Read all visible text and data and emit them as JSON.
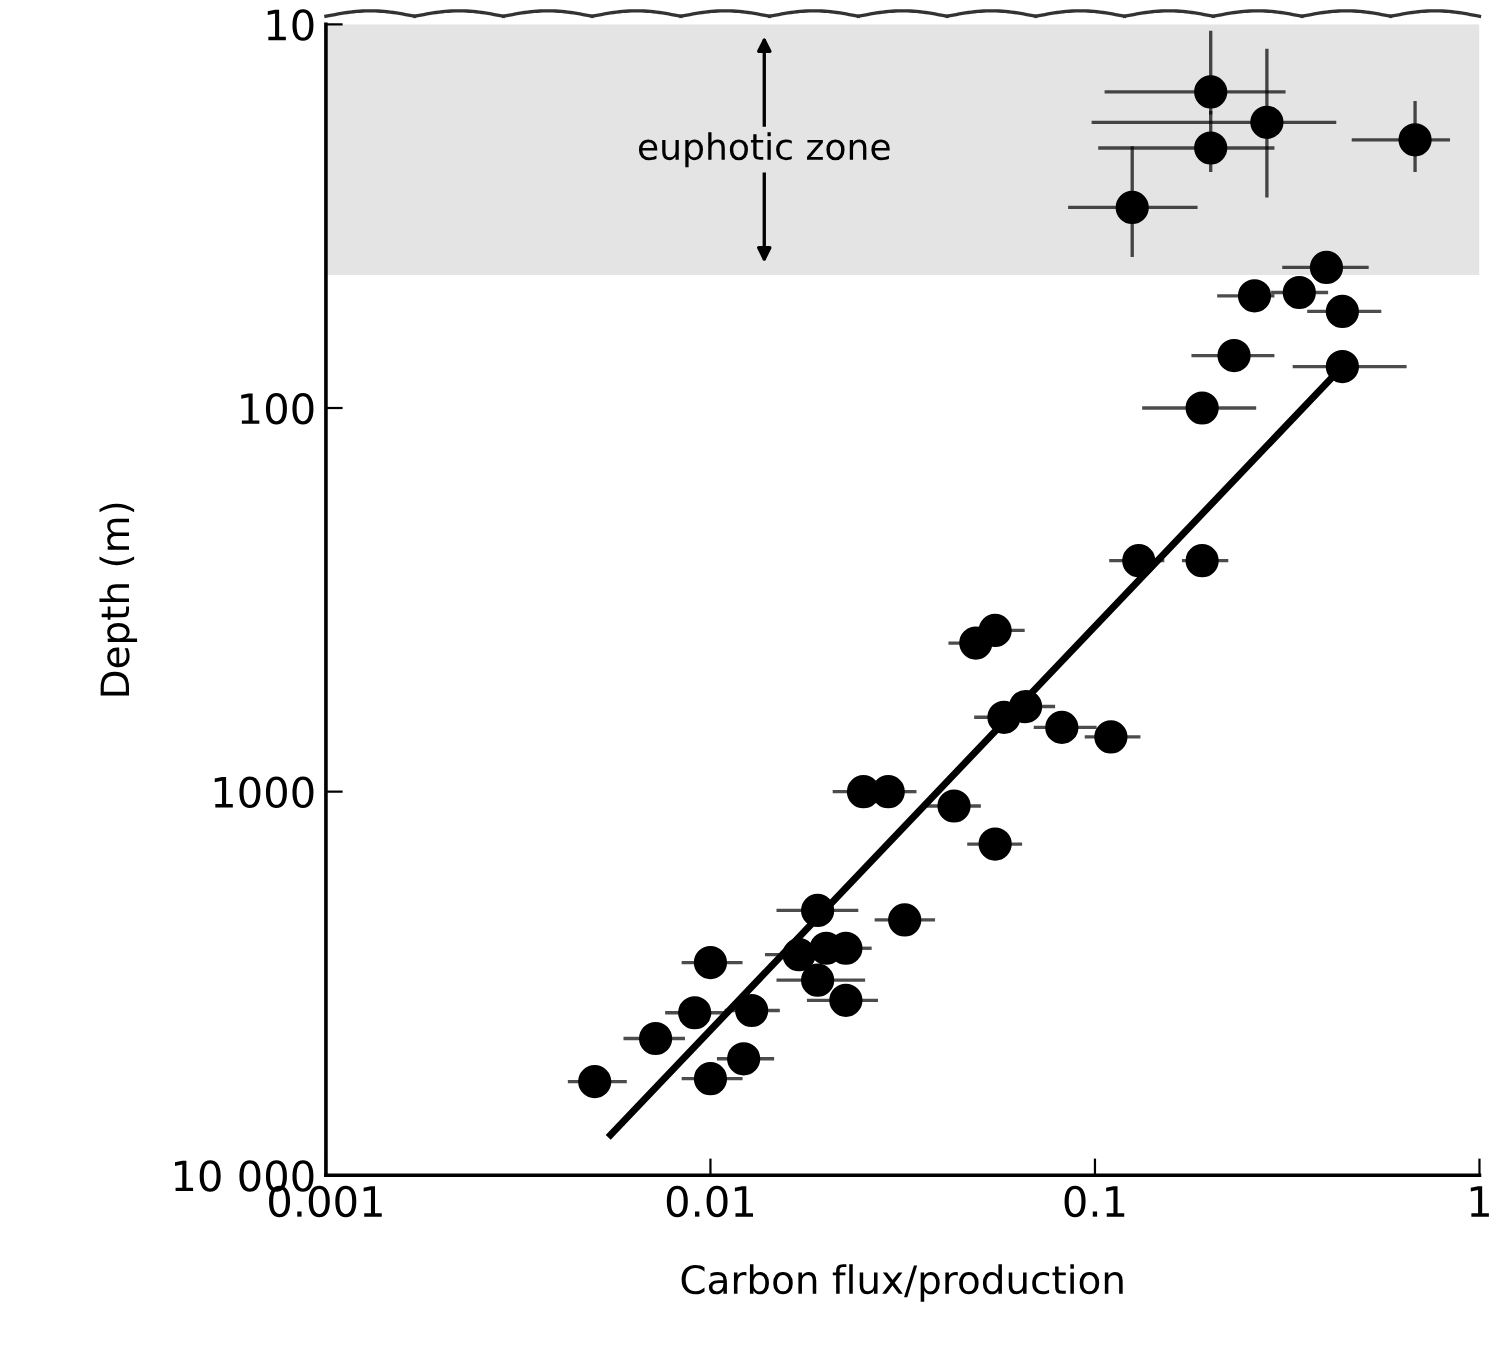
{
  "chart_data": {
    "type": "scatter",
    "xlabel": "Carbon flux/production",
    "ylabel": "Depth (m)",
    "log": "xy",
    "xlim": [
      0.001,
      1
    ],
    "ylim": [
      10000,
      10
    ],
    "xticks": [
      0.001,
      0.01,
      0.1,
      1
    ],
    "yticks": [
      10,
      100,
      1000,
      {
        "value": 10000,
        "label": "10 000"
      }
    ],
    "grid": false,
    "legend": false,
    "marker": "circle",
    "bands": [
      {
        "axis": "y",
        "from": 10,
        "to": 45,
        "label": "euphotic zone",
        "color": "#e4e4e4"
      }
    ],
    "series": [
      {
        "color": "#000000",
        "x": [
          0.2,
          0.2,
          0.28,
          0.125,
          0.68,
          0.4,
          0.26,
          0.34,
          0.44,
          0.23,
          0.44,
          0.19,
          0.13,
          0.19,
          0.055,
          0.049,
          0.066,
          0.058,
          0.082,
          0.11,
          0.025,
          0.029,
          0.043,
          0.055,
          0.019,
          0.032,
          0.01,
          0.017,
          0.02,
          0.0225,
          0.019,
          0.0225,
          0.0128,
          0.0091,
          0.0072,
          0.0122,
          0.01,
          0.005
        ],
        "values": [
          15,
          21,
          18,
          30,
          20,
          43,
          51,
          50,
          56,
          73,
          78,
          100,
          250,
          250,
          380,
          410,
          600,
          640,
          680,
          720,
          1000,
          1000,
          1090,
          1370,
          2040,
          2160,
          2790,
          2660,
          2560,
          2560,
          3100,
          3500,
          3720,
          3770,
          4400,
          4970,
          5600,
          5700
        ],
        "xerrors": [
          [
            0.107,
            0.31
          ],
          [
            0.103,
            0.29
          ],
          [
            0.099,
            0.42
          ],
          [
            0.086,
            0.183
          ],
          [
            0.47,
            0.83
          ],
          [
            0.31,
            0.51
          ],
          [
            0.21,
            0.29
          ],
          [
            0.29,
            0.4
          ],
          [
            0.36,
            0.55
          ],
          [
            0.18,
            0.29
          ],
          [
            0.33,
            0.64
          ],
          [
            0.134,
            0.26
          ],
          [
            0.11,
            0.15
          ],
          [
            0.17,
            0.22
          ],
          [
            0.047,
            0.065
          ],
          [
            0.042,
            0.057
          ],
          [
            0.056,
            0.078
          ],
          [
            0.049,
            0.068
          ],
          [
            0.07,
            0.1
          ],
          [
            0.095,
            0.13
          ],
          [
            0.021,
            0.025
          ],
          [
            0.029,
            0.034
          ],
          [
            0.036,
            0.05
          ],
          [
            0.047,
            0.064
          ],
          [
            0.015,
            0.024
          ],
          [
            0.027,
            0.038
          ],
          [
            0.0085,
            0.012
          ],
          [
            0.014,
            0.017
          ],
          null,
          [
            0.0225,
            0.026
          ],
          [
            0.015,
            0.025
          ],
          [
            0.018,
            0.027
          ],
          [
            0.011,
            0.015
          ],
          [
            0.0077,
            0.011
          ],
          [
            0.006,
            0.0085
          ],
          [
            0.0105,
            0.0145
          ],
          [
            0.0085,
            0.012
          ],
          [
            0.0043,
            0.006
          ]
        ],
        "errors": [
          [
            10.5,
            17
          ],
          [
            17,
            24
          ],
          [
            11.7,
            28
          ],
          [
            21,
            40
          ],
          [
            16,
            24
          ],
          null,
          null,
          null,
          null,
          null,
          null,
          null,
          null,
          null,
          null,
          null,
          null,
          null,
          null,
          null,
          null,
          null,
          null,
          null,
          null,
          null,
          null,
          null,
          null,
          null,
          null,
          null,
          null,
          null,
          null,
          null,
          null,
          null
        ]
      },
      {
        "type": "line",
        "marker": "none",
        "color": "#000000",
        "x": [
          0.0055,
          0.44
        ],
        "values": [
          7850,
          78
        ]
      }
    ]
  }
}
